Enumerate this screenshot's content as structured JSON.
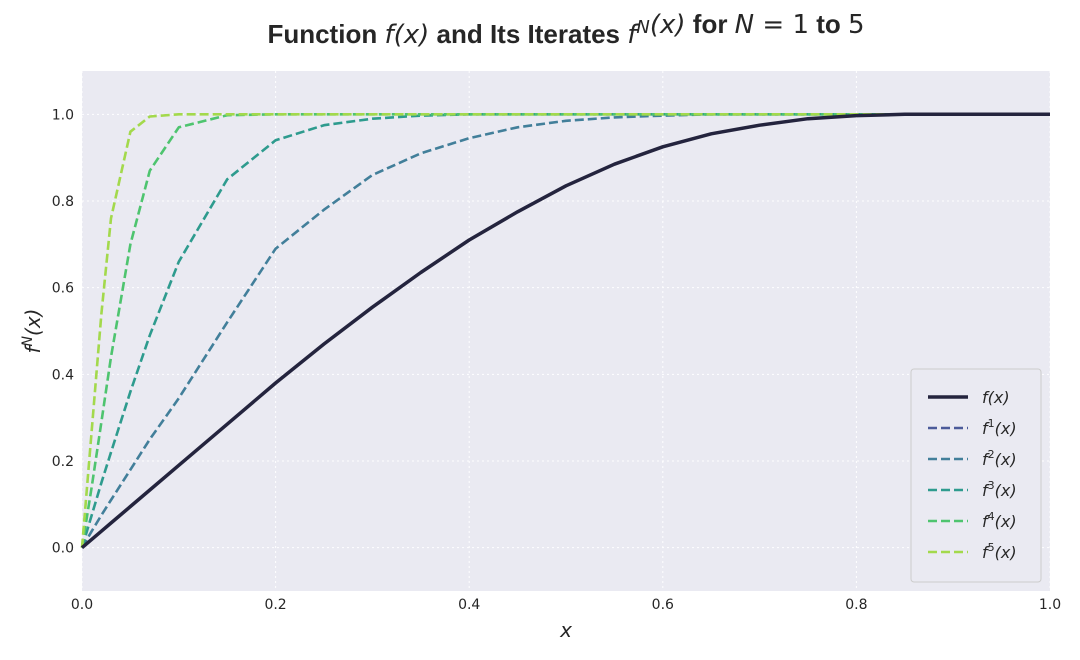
{
  "chart_data": {
    "type": "line",
    "title_parts": [
      {
        "text": "Function ",
        "math": false
      },
      {
        "text": "f",
        "math": true
      },
      {
        "text": "(x)",
        "math": true
      },
      {
        "text": " and Its Iterates ",
        "math": false
      },
      {
        "text": "f",
        "math": true,
        "sup": "N"
      },
      {
        "text": "(x)",
        "math": true
      },
      {
        "text": " for ",
        "math": false
      },
      {
        "text": "N",
        "math": true
      },
      {
        "text": " = 1",
        "math": true
      },
      {
        "text": " to ",
        "math": false
      },
      {
        "text": "5",
        "math": true
      }
    ],
    "xlabel": "x",
    "ylabel_base": "f",
    "ylabel_sup": "N",
    "ylabel_rest": "(x)",
    "xlim": [
      0.0,
      1.0
    ],
    "ylim": [
      -0.1,
      1.1
    ],
    "x_ticks": [
      0.0,
      0.2,
      0.4,
      0.6,
      0.8,
      1.0
    ],
    "x_tick_labels": [
      "0.0",
      "0.2",
      "0.4",
      "0.6",
      "0.8",
      "1.0"
    ],
    "y_ticks": [
      0.0,
      0.2,
      0.4,
      0.6,
      0.8,
      1.0
    ],
    "y_tick_labels": [
      "0.0",
      "0.2",
      "0.4",
      "0.6",
      "0.8",
      "1.0"
    ],
    "grid": true,
    "legend_position": "lower-right",
    "x": [
      0.0,
      0.01,
      0.02,
      0.03,
      0.05,
      0.07,
      0.1,
      0.15,
      0.2,
      0.25,
      0.3,
      0.35,
      0.4,
      0.45,
      0.5,
      0.55,
      0.6,
      0.65,
      0.7,
      0.75,
      0.8,
      0.85,
      0.9,
      0.95,
      1.0
    ],
    "series": [
      {
        "name_base": "f",
        "name_sup": "",
        "name_rest": "(x)",
        "style": "solid",
        "color": "#24243e",
        "values": [
          0.0,
          0.019,
          0.038,
          0.057,
          0.095,
          0.133,
          0.19,
          0.285,
          0.38,
          0.47,
          0.555,
          0.635,
          0.71,
          0.775,
          0.835,
          0.885,
          0.925,
          0.955,
          0.975,
          0.99,
          0.997,
          1.0,
          1.0,
          1.0,
          1.0
        ]
      },
      {
        "name_base": "f",
        "name_sup": "1",
        "name_rest": "(x)",
        "style": "dashed",
        "color": "#4c5b9a",
        "values": [
          0.0,
          0.019,
          0.038,
          0.057,
          0.095,
          0.133,
          0.19,
          0.285,
          0.38,
          0.47,
          0.555,
          0.635,
          0.71,
          0.775,
          0.835,
          0.885,
          0.925,
          0.955,
          0.975,
          0.99,
          0.997,
          1.0,
          1.0,
          1.0,
          1.0
        ]
      },
      {
        "name_base": "f",
        "name_sup": "2",
        "name_rest": "(x)",
        "style": "dashed",
        "color": "#427f9a",
        "values": [
          0.0,
          0.038,
          0.075,
          0.11,
          0.18,
          0.25,
          0.345,
          0.52,
          0.69,
          0.78,
          0.86,
          0.91,
          0.945,
          0.97,
          0.985,
          0.993,
          0.997,
          1.0,
          1.0,
          1.0,
          1.0,
          1.0,
          1.0,
          1.0,
          1.0
        ]
      },
      {
        "name_base": "f",
        "name_sup": "3",
        "name_rest": "(x)",
        "style": "dashed",
        "color": "#2e9b8e",
        "values": [
          0.0,
          0.075,
          0.15,
          0.22,
          0.36,
          0.49,
          0.66,
          0.85,
          0.94,
          0.975,
          0.99,
          0.997,
          1.0,
          1.0,
          1.0,
          1.0,
          1.0,
          1.0,
          1.0,
          1.0,
          1.0,
          1.0,
          1.0,
          1.0,
          1.0
        ]
      },
      {
        "name_base": "f",
        "name_sup": "4",
        "name_rest": "(x)",
        "style": "dashed",
        "color": "#4ec46f",
        "values": [
          0.0,
          0.14,
          0.29,
          0.44,
          0.7,
          0.87,
          0.97,
          0.998,
          1.0,
          1.0,
          1.0,
          1.0,
          1.0,
          1.0,
          1.0,
          1.0,
          1.0,
          1.0,
          1.0,
          1.0,
          1.0,
          1.0,
          1.0,
          1.0,
          1.0
        ]
      },
      {
        "name_base": "f",
        "name_sup": "5",
        "name_rest": "(x)",
        "style": "dashed",
        "color": "#a3d94c",
        "values": [
          0.0,
          0.27,
          0.54,
          0.76,
          0.96,
          0.995,
          1.0,
          1.0,
          1.0,
          1.0,
          1.0,
          1.0,
          1.0,
          1.0,
          1.0,
          1.0,
          1.0,
          1.0,
          1.0,
          1.0,
          1.0,
          1.0,
          1.0,
          1.0,
          1.0
        ]
      }
    ],
    "colors": {
      "plot_background": "#eaeaf2",
      "grid": "#ffffff",
      "legend_background": "#eaeaf2",
      "legend_border": "#cccccc"
    }
  }
}
